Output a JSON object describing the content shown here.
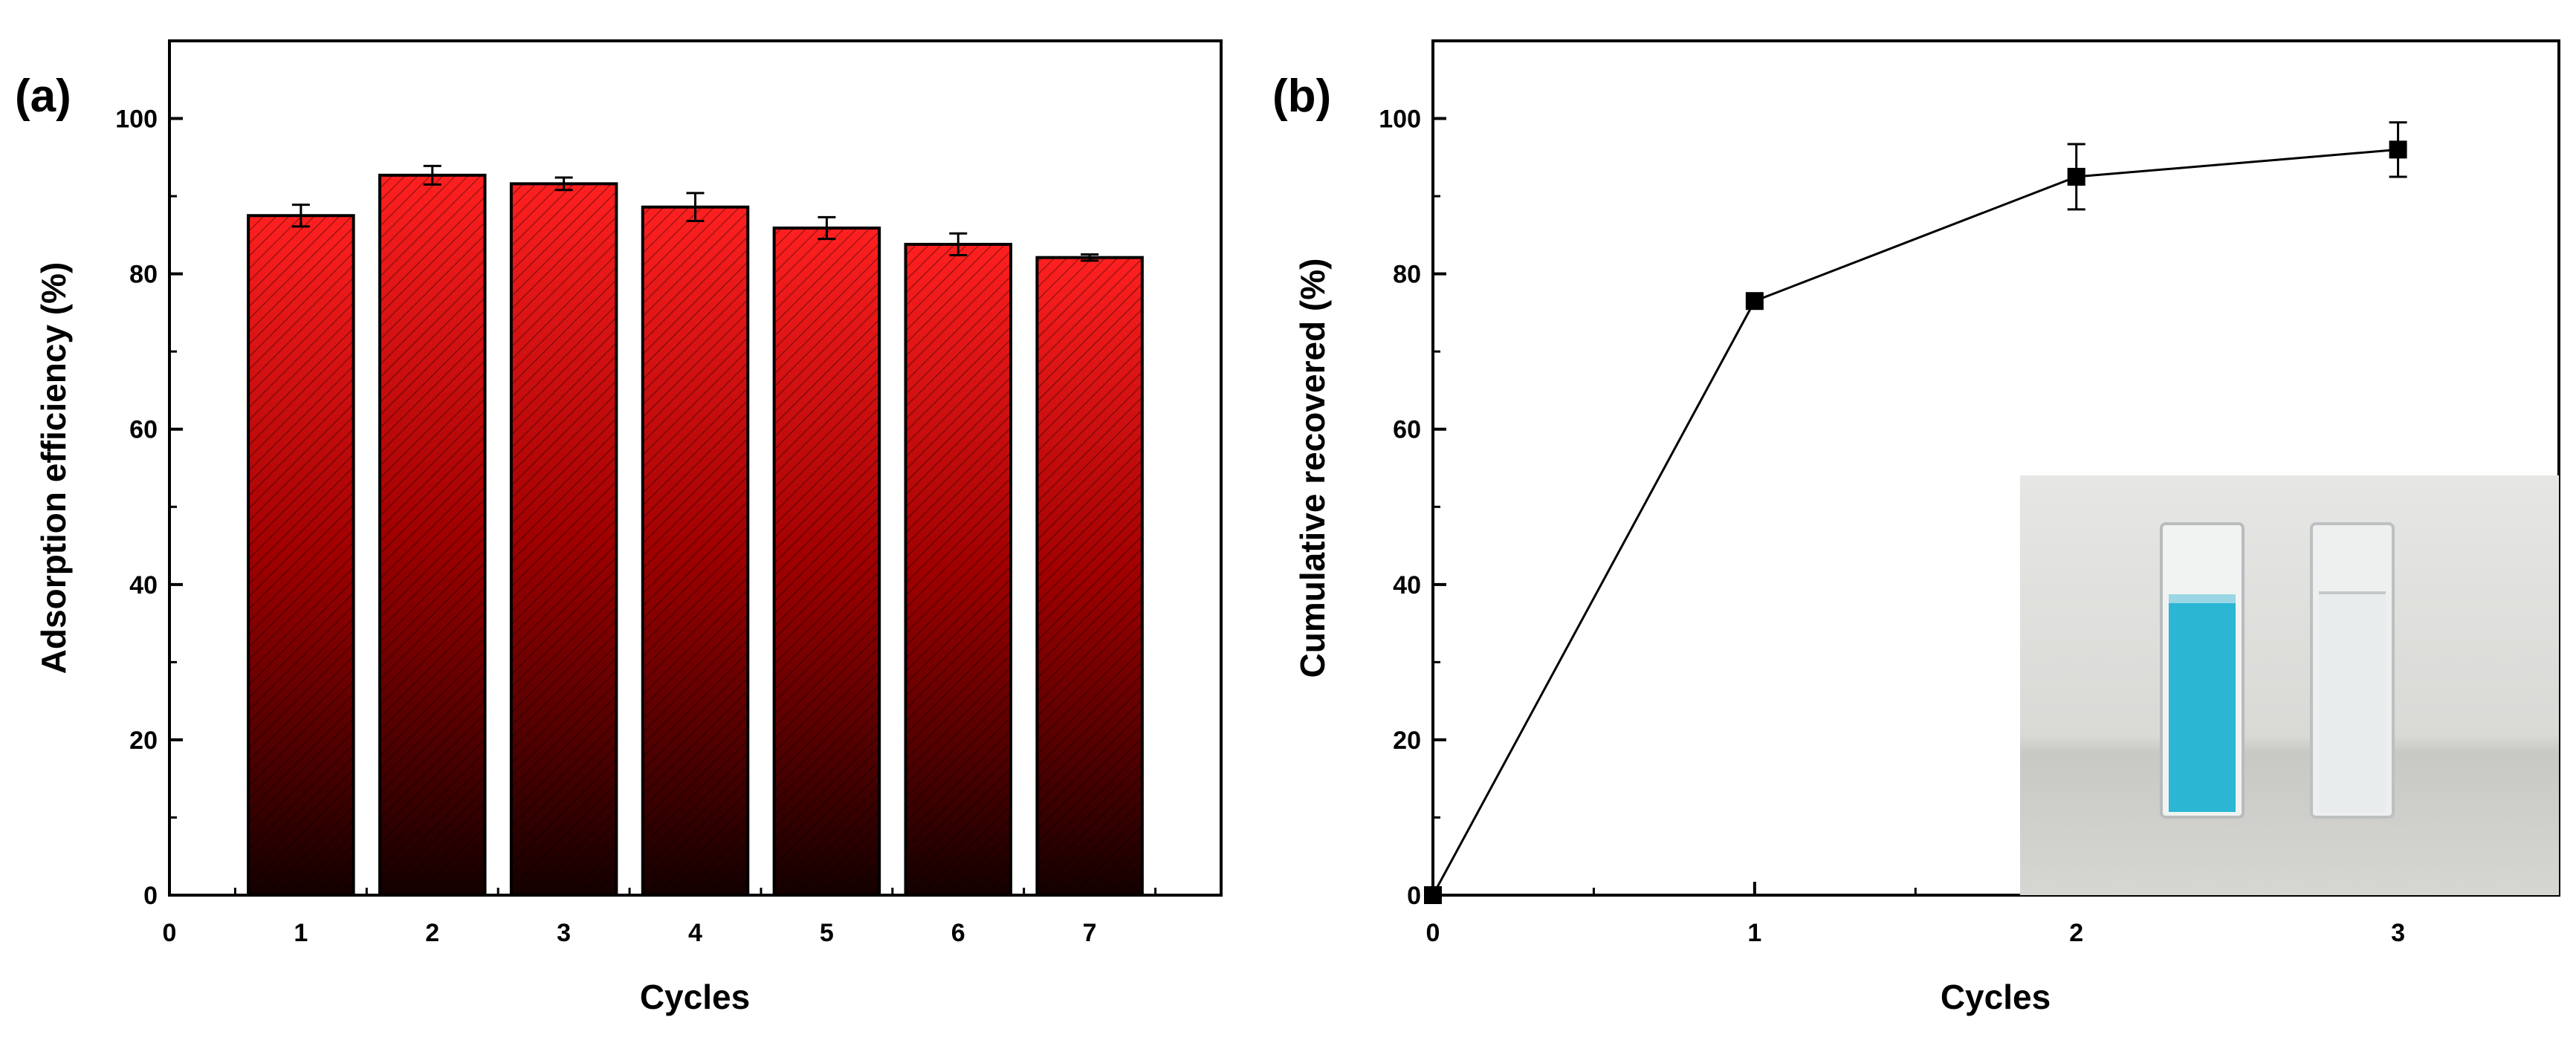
{
  "chart_data": [
    {
      "panel_label": "(a)",
      "type": "bar",
      "title": "",
      "xlabel": "Cycles",
      "ylabel": "Adsorption efficiency (%)",
      "xlim": [
        0,
        8
      ],
      "ylim": [
        0,
        110
      ],
      "xticks": [
        0,
        1,
        2,
        3,
        4,
        5,
        6,
        7
      ],
      "yticks": [
        0,
        20,
        40,
        60,
        80,
        100
      ],
      "categories": [
        1,
        2,
        3,
        4,
        5,
        6,
        7
      ],
      "values": [
        87.5,
        92.7,
        91.6,
        88.6,
        85.9,
        83.8,
        82.1
      ],
      "errors": [
        1.4,
        1.2,
        0.8,
        1.8,
        1.4,
        1.4,
        0.4
      ],
      "grid": false,
      "bar_color_top": "#ff2020",
      "bar_color_bottom": "#140000"
    },
    {
      "panel_label": "(b)",
      "type": "line",
      "title": "",
      "xlabel": "Cycles",
      "ylabel": "Cumulative recovered (%)",
      "xlim": [
        0,
        3.5
      ],
      "ylim": [
        0,
        110
      ],
      "xticks": [
        0,
        1,
        2,
        3
      ],
      "yticks": [
        0,
        20,
        40,
        60,
        80,
        100
      ],
      "x": [
        0,
        1,
        2,
        3
      ],
      "y": [
        0,
        76.5,
        92.5,
        96.0
      ],
      "errors": [
        0,
        0,
        4.2,
        3.5
      ],
      "marker": "square",
      "grid": false,
      "inset": {
        "description": "photo",
        "cuvettes": [
          {
            "liquid_color": "#2bb6d4"
          },
          {
            "liquid_color": "#e8ecec"
          }
        ]
      }
    }
  ]
}
